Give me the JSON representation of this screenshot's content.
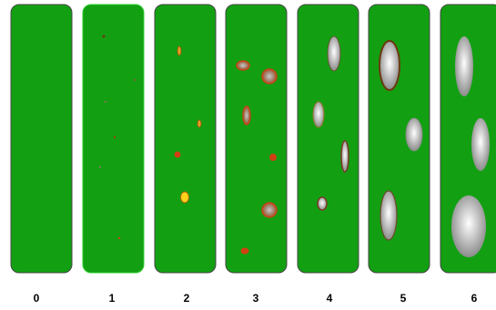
{
  "panels": [
    {
      "label": "0"
    },
    {
      "label": "1"
    },
    {
      "label": "2"
    },
    {
      "label": "3"
    },
    {
      "label": "4"
    },
    {
      "label": "5"
    },
    {
      "label": "6"
    }
  ]
}
